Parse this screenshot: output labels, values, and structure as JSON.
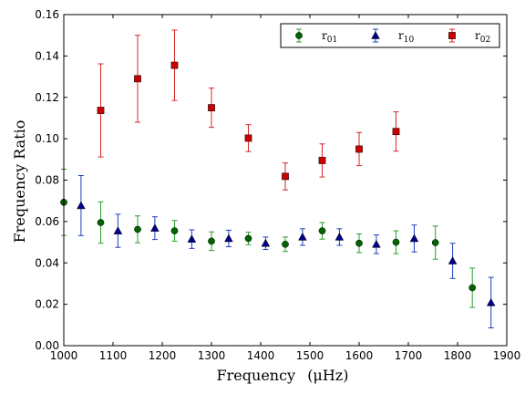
{
  "chart_data": {
    "type": "scatter",
    "xlabel": "Frequency",
    "xlabel_unit": "(μHz)",
    "ylabel": "Frequency Ratio",
    "xlim": [
      1000,
      1900
    ],
    "ylim": [
      0.0,
      0.16
    ],
    "x_ticks": [
      "1000",
      "1100",
      "1200",
      "1300",
      "1400",
      "1500",
      "1600",
      "1700",
      "1800",
      "1900"
    ],
    "y_ticks": [
      "0.00",
      "0.02",
      "0.04",
      "0.06",
      "0.08",
      "0.10",
      "0.12",
      "0.14",
      "0.16"
    ],
    "grid": false,
    "legend_position": "top-right",
    "series": [
      {
        "name": "r",
        "subscript": "01",
        "marker": "circle",
        "color": "#006400",
        "errcolor": "#2ca02c",
        "points": [
          {
            "x": 1000,
            "y": 0.0693,
            "err": 0.016
          },
          {
            "x": 1075,
            "y": 0.0595,
            "err": 0.01
          },
          {
            "x": 1150,
            "y": 0.0562,
            "err": 0.0065
          },
          {
            "x": 1225,
            "y": 0.0555,
            "err": 0.005
          },
          {
            "x": 1300,
            "y": 0.0505,
            "err": 0.0045
          },
          {
            "x": 1375,
            "y": 0.0518,
            "err": 0.003
          },
          {
            "x": 1450,
            "y": 0.049,
            "err": 0.0035
          },
          {
            "x": 1525,
            "y": 0.0555,
            "err": 0.004
          },
          {
            "x": 1600,
            "y": 0.0495,
            "err": 0.0045
          },
          {
            "x": 1675,
            "y": 0.05,
            "err": 0.0055
          },
          {
            "x": 1755,
            "y": 0.0498,
            "err": 0.008
          },
          {
            "x": 1830,
            "y": 0.028,
            "err": 0.0095
          }
        ]
      },
      {
        "name": "r",
        "subscript": "10",
        "marker": "triangle",
        "color": "#00008b",
        "errcolor": "#1f3fbf",
        "points": [
          {
            "x": 1035,
            "y": 0.0677,
            "err": 0.0145
          },
          {
            "x": 1110,
            "y": 0.0555,
            "err": 0.008
          },
          {
            "x": 1185,
            "y": 0.0568,
            "err": 0.0055
          },
          {
            "x": 1260,
            "y": 0.0515,
            "err": 0.0045
          },
          {
            "x": 1335,
            "y": 0.0518,
            "err": 0.004
          },
          {
            "x": 1410,
            "y": 0.0495,
            "err": 0.003
          },
          {
            "x": 1485,
            "y": 0.0525,
            "err": 0.004
          },
          {
            "x": 1560,
            "y": 0.0525,
            "err": 0.004
          },
          {
            "x": 1635,
            "y": 0.049,
            "err": 0.0045
          },
          {
            "x": 1712,
            "y": 0.0518,
            "err": 0.0065
          },
          {
            "x": 1790,
            "y": 0.041,
            "err": 0.0085
          },
          {
            "x": 1868,
            "y": 0.0208,
            "err": 0.0122
          }
        ]
      },
      {
        "name": "r",
        "subscript": "02",
        "marker": "square",
        "color": "#cc0000",
        "errcolor": "#d62728",
        "points": [
          {
            "x": 1075,
            "y": 0.1137,
            "err": 0.0225
          },
          {
            "x": 1150,
            "y": 0.129,
            "err": 0.021
          },
          {
            "x": 1225,
            "y": 0.1355,
            "err": 0.017
          },
          {
            "x": 1300,
            "y": 0.115,
            "err": 0.0095
          },
          {
            "x": 1375,
            "y": 0.1003,
            "err": 0.0065
          },
          {
            "x": 1450,
            "y": 0.0818,
            "err": 0.0065
          },
          {
            "x": 1525,
            "y": 0.0895,
            "err": 0.008
          },
          {
            "x": 1600,
            "y": 0.095,
            "err": 0.008
          },
          {
            "x": 1675,
            "y": 0.1035,
            "err": 0.0095
          }
        ]
      }
    ]
  }
}
